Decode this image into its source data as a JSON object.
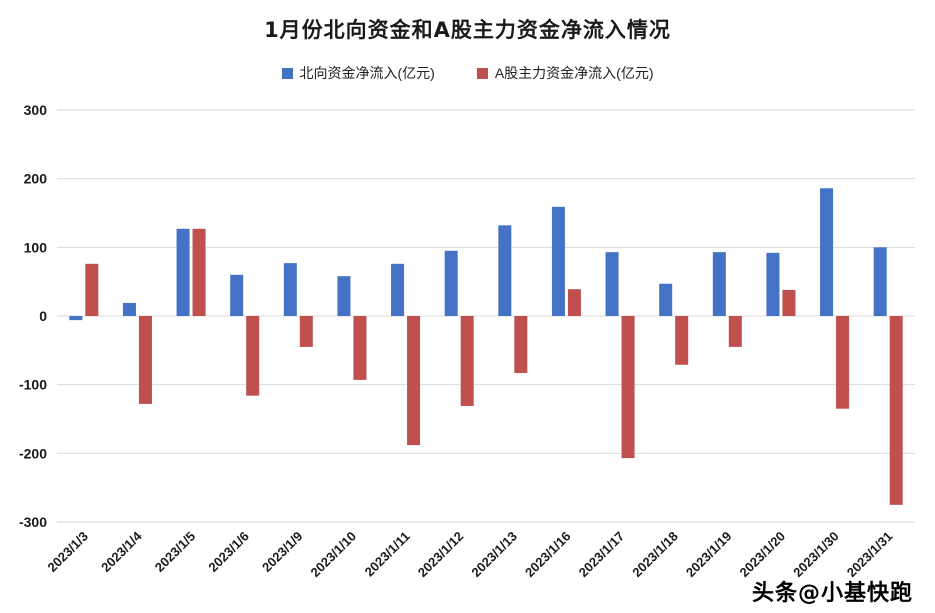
{
  "title": "1月份北向资金和A股主力资金净流入情况",
  "legend": [
    {
      "label": "北向资金净流入(亿元)",
      "color": "#4472C4"
    },
    {
      "label": "A股主力资金净流入(亿元)",
      "color": "#C0504D"
    }
  ],
  "watermark": "头条@小基快跑",
  "chart_data": {
    "type": "bar",
    "title": "1月份北向资金和A股主力资金净流入情况",
    "categories": [
      "2023/1/3",
      "2023/1/4",
      "2023/1/5",
      "2023/1/6",
      "2023/1/9",
      "2023/1/10",
      "2023/1/11",
      "2023/1/12",
      "2023/1/13",
      "2023/1/16",
      "2023/1/17",
      "2023/1/18",
      "2023/1/19",
      "2023/1/20",
      "2023/1/30",
      "2023/1/31"
    ],
    "series": [
      {
        "key": "northbound",
        "name": "北向资金净流入(亿元)",
        "color": "#4472C4",
        "values": [
          -6,
          19,
          127,
          60,
          77,
          58,
          76,
          95,
          132,
          159,
          93,
          47,
          93,
          92,
          186,
          100
        ]
      },
      {
        "key": "a-share-main",
        "name": "A股主力资金净流入(亿元)",
        "color": "#C0504D",
        "values": [
          76,
          -128,
          127,
          -116,
          -45,
          -93,
          -188,
          -131,
          -83,
          39,
          -207,
          -71,
          -45,
          38,
          -135,
          -275
        ]
      }
    ],
    "xlabel": "",
    "ylabel": "",
    "ylim": [
      -300,
      300
    ],
    "ytick_interval": 100,
    "grid": true,
    "gridline_color": "#d9d9d9",
    "legend_position": "top"
  }
}
